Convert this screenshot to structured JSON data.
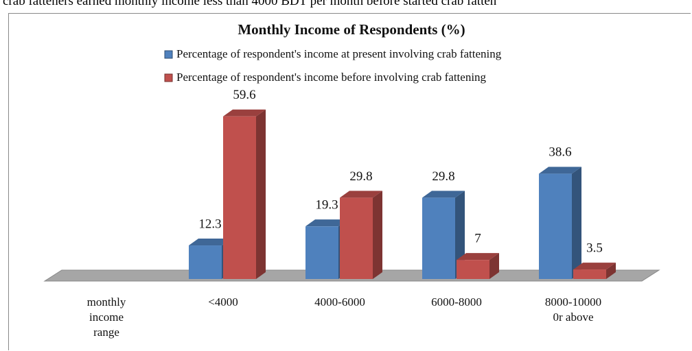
{
  "caption_above": "crab fatteners earned monthly income less than 4000 BDT per month before started crab fatten",
  "chart_data": {
    "type": "bar3d",
    "title": "Monthly Income of Respondents (%)",
    "categories": [
      "monthly\nincome\nrange",
      "<4000",
      "4000-6000",
      "6000-8000",
      "8000-10000\n0r above"
    ],
    "series": [
      {
        "name": "Percentage of respondent's income at present  involving crab fattening",
        "color": "#4f81bd",
        "values": [
          null,
          12.3,
          19.3,
          29.8,
          38.6
        ]
      },
      {
        "name": "Percentage of respondent's income before involving crab fattening",
        "color": "#c0504d",
        "values": [
          null,
          59.6,
          29.8,
          7,
          3.5
        ]
      }
    ]
  }
}
